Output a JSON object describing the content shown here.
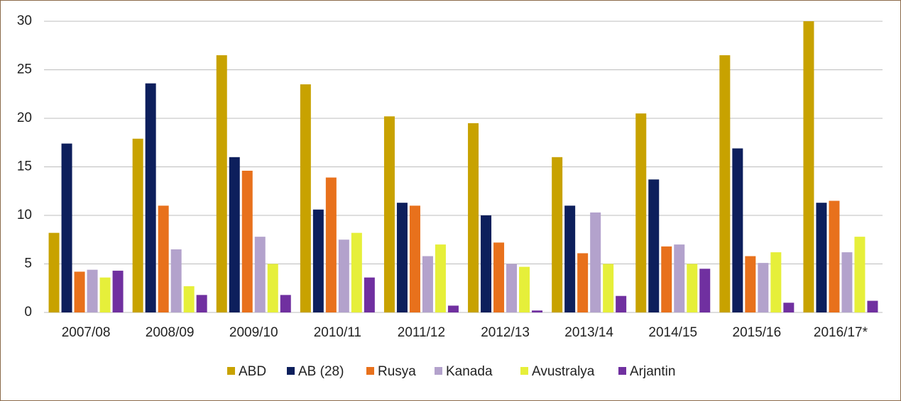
{
  "chart_data": {
    "type": "bar",
    "categories": [
      "2007/08",
      "2008/09",
      "2009/10",
      "2010/11",
      "2011/12",
      "2012/13",
      "2013/14",
      "2014/15",
      "2015/16",
      "2016/17*"
    ],
    "series": [
      {
        "name": "ABD",
        "color": "#c8a200",
        "values": [
          8.2,
          17.9,
          26.5,
          23.5,
          20.2,
          19.5,
          16.0,
          20.5,
          26.5,
          30.0
        ]
      },
      {
        "name": "AB (28)",
        "color": "#0d1f5c",
        "values": [
          17.4,
          23.6,
          16.0,
          10.6,
          11.3,
          10.0,
          11.0,
          13.7,
          16.9,
          11.3
        ]
      },
      {
        "name": "Rusya",
        "color": "#e8711c",
        "values": [
          4.2,
          11.0,
          14.6,
          13.9,
          11.0,
          7.2,
          6.1,
          6.8,
          5.8,
          11.5
        ]
      },
      {
        "name": "Kanada",
        "color": "#b3a2cc",
        "values": [
          4.4,
          6.5,
          7.8,
          7.5,
          5.8,
          5.0,
          10.3,
          7.0,
          5.1,
          6.2
        ]
      },
      {
        "name": "Avustralya",
        "color": "#e6ef3a",
        "values": [
          3.6,
          2.7,
          5.0,
          8.2,
          7.0,
          4.7,
          5.0,
          5.0,
          6.2,
          7.8
        ]
      },
      {
        "name": "Arjantin",
        "color": "#7030a0",
        "values": [
          4.3,
          1.8,
          1.8,
          3.6,
          0.7,
          0.2,
          1.7,
          4.5,
          1.0,
          1.2
        ]
      }
    ],
    "ylim": [
      0,
      30
    ],
    "yticks": [
      0,
      5,
      10,
      15,
      20,
      25,
      30
    ],
    "grid": true,
    "legend": "bottom"
  }
}
